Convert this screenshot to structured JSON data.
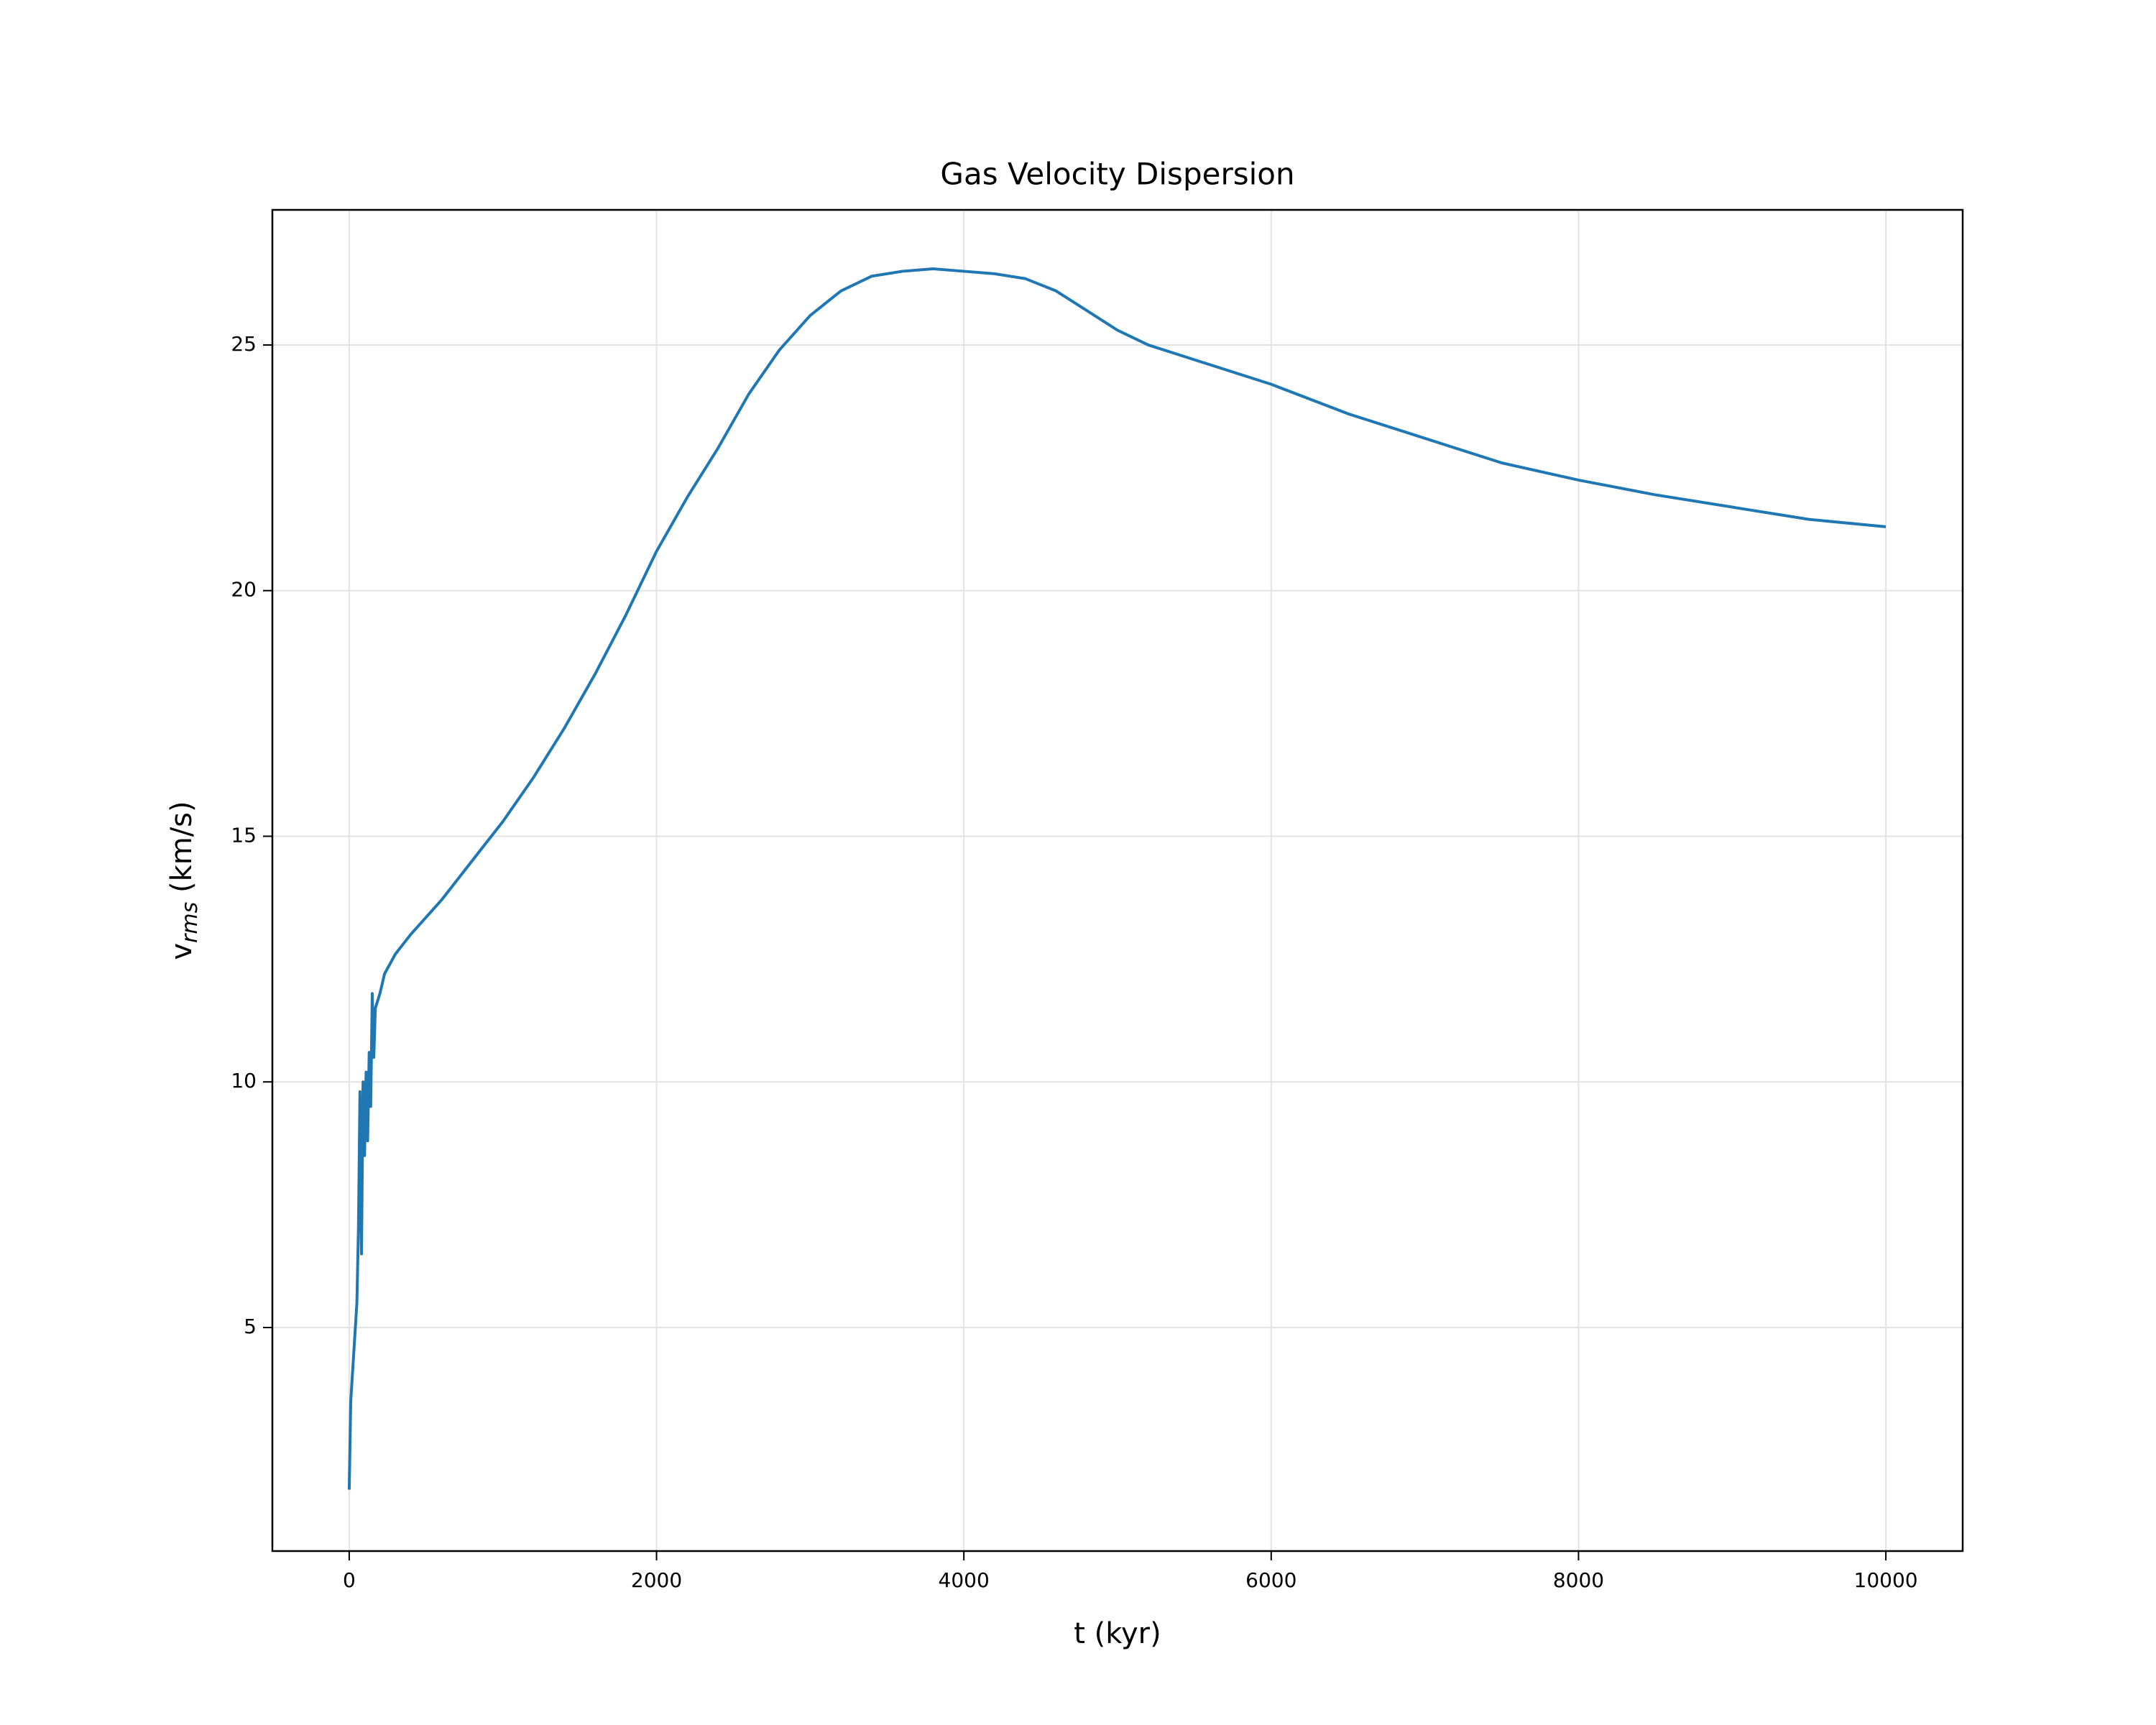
{
  "chart_data": {
    "type": "line",
    "title": "Gas Velocity Dispersion",
    "xlabel": "t (kyr)",
    "ylabel": {
      "main": "v",
      "sub": "rms",
      "rest": " (km/s)"
    },
    "x": [
      0,
      10,
      20,
      50,
      60,
      70,
      80,
      90,
      100,
      110,
      120,
      130,
      140,
      150,
      160,
      170,
      200,
      230,
      300,
      400,
      600,
      800,
      1000,
      1200,
      1400,
      1600,
      1800,
      2000,
      2200,
      2400,
      2600,
      2800,
      3000,
      3200,
      3400,
      3600,
      3800,
      4000,
      4200,
      4400,
      4600,
      4800,
      5000,
      5200,
      5500,
      6000,
      6500,
      7000,
      7500,
      8000,
      8500,
      9000,
      9500,
      10000
    ],
    "series": [
      {
        "name": "v_rms",
        "color": "#1f77b4",
        "values": [
          1.7,
          3.5,
          4.0,
          5.5,
          7.0,
          9.8,
          6.5,
          10.0,
          8.5,
          10.2,
          8.8,
          10.6,
          9.5,
          11.8,
          10.5,
          11.5,
          11.8,
          12.2,
          12.6,
          13.0,
          13.7,
          14.5,
          15.3,
          16.2,
          17.2,
          18.3,
          19.5,
          20.8,
          21.9,
          22.9,
          24.0,
          24.9,
          25.6,
          26.1,
          26.4,
          26.5,
          26.55,
          26.5,
          26.45,
          26.35,
          26.1,
          25.7,
          25.3,
          25.0,
          24.7,
          24.2,
          23.6,
          23.1,
          22.6,
          22.25,
          21.95,
          21.7,
          21.45,
          21.3
        ]
      }
    ],
    "xlim": [
      -500,
      10500
    ],
    "ylim": [
      0.45,
      27.75
    ],
    "xticks": [
      0,
      2000,
      4000,
      6000,
      8000,
      10000
    ],
    "yticks": [
      5,
      10,
      15,
      20,
      25
    ],
    "grid": true
  }
}
